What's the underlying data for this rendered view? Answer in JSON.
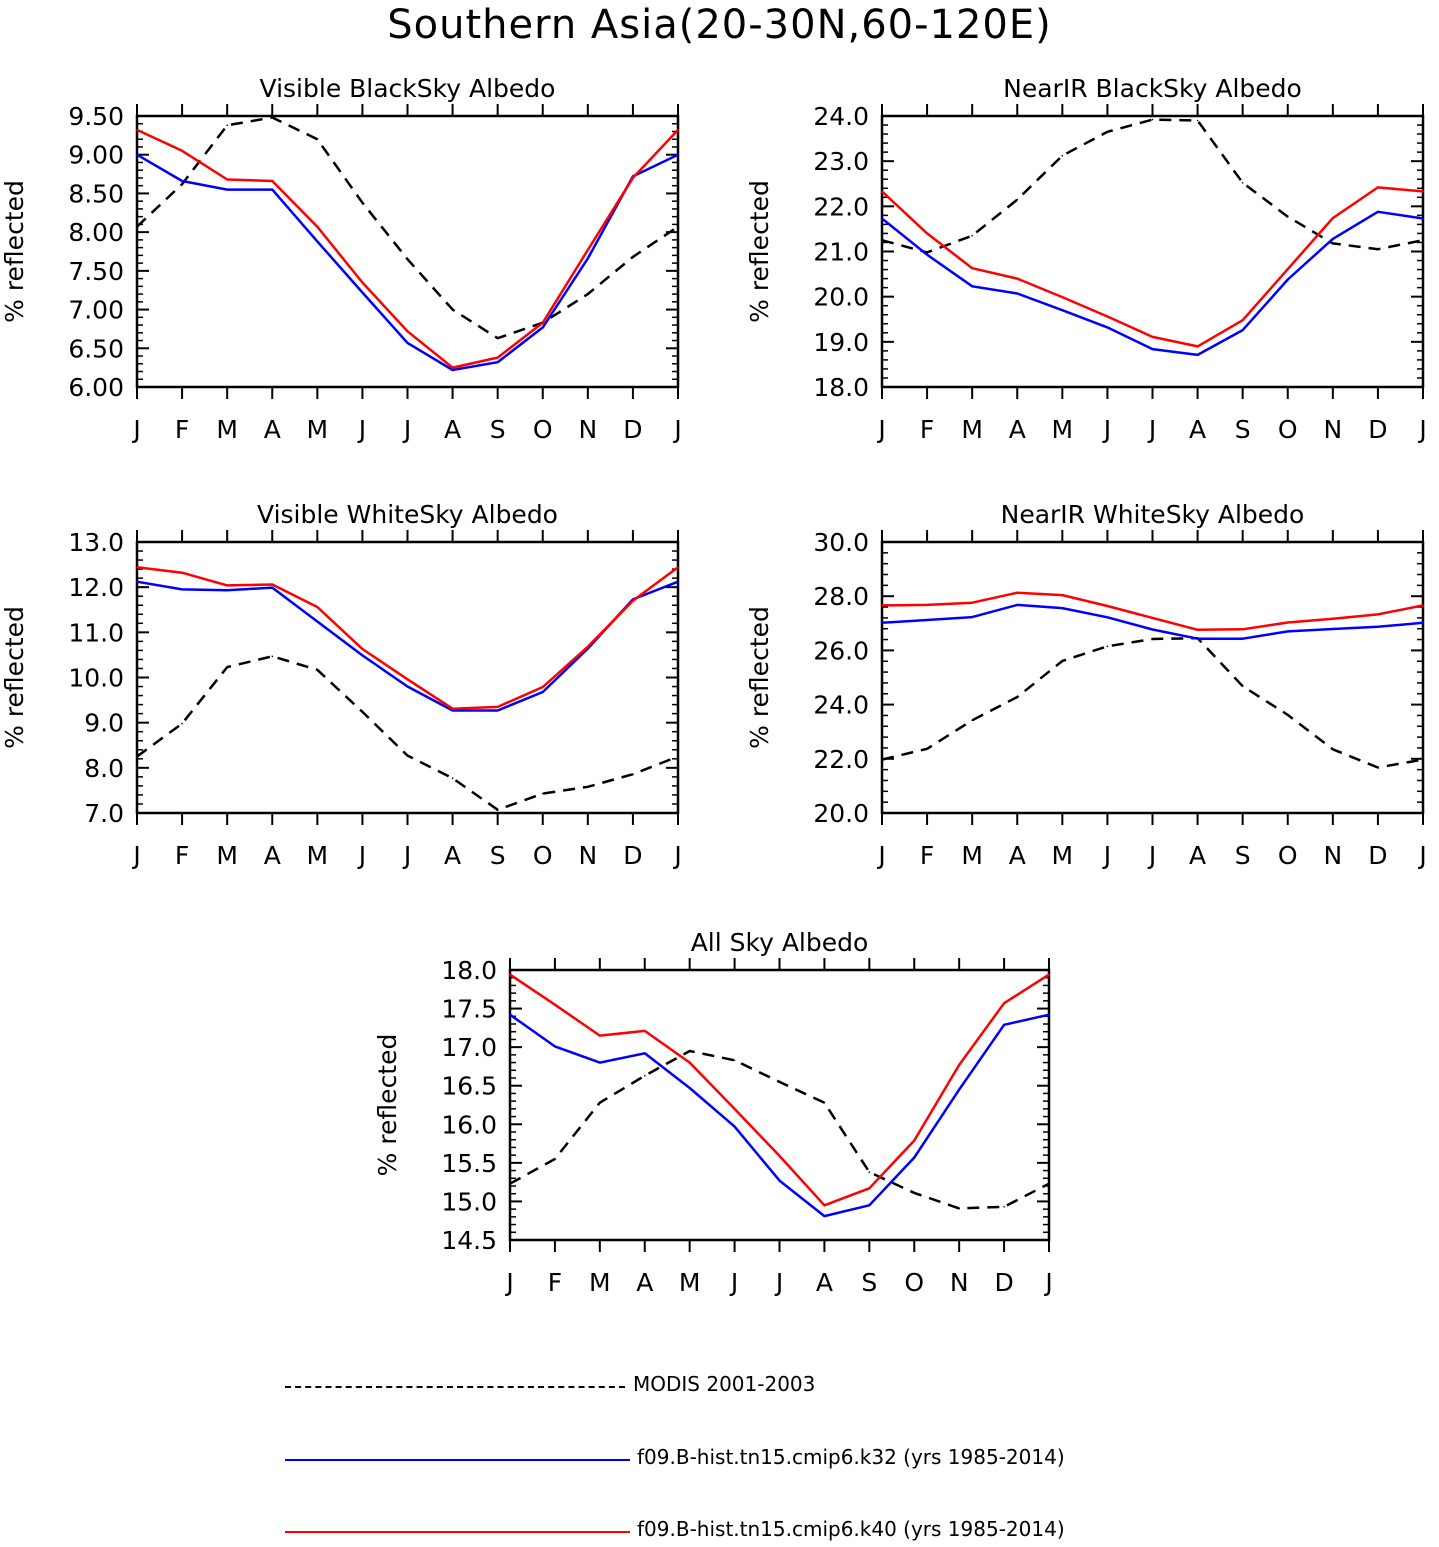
{
  "figure_title": "Southern Asia(20-30N,60-120E)",
  "colors": {
    "modis": "#000000",
    "k32": "#0000ff",
    "k40": "#ff0000"
  },
  "legend": [
    {
      "key": "modis",
      "label": "MODIS 2001-2003",
      "style": "dashed"
    },
    {
      "key": "k32",
      "label": "f09.B-hist.tn15.cmip6.k32 (yrs 1985-2014)",
      "style": "solid"
    },
    {
      "key": "k40",
      "label": "f09.B-hist.tn15.cmip6.k40 (yrs 1985-2014)",
      "style": "solid"
    }
  ],
  "chart_data": [
    {
      "type": "line",
      "title": "Visible BlackSky Albedo",
      "ylabel": "% reflected",
      "xlabel": "",
      "categories": [
        "J",
        "F",
        "M",
        "A",
        "M",
        "J",
        "J",
        "A",
        "S",
        "O",
        "N",
        "D",
        "J"
      ],
      "ylim": [
        6.0,
        9.5
      ],
      "yticks": [
        "6.00",
        "6.50",
        "7.00",
        "7.50",
        "8.00",
        "8.50",
        "9.00",
        "9.50"
      ],
      "series": [
        {
          "name": "MODIS 2001-2003",
          "key": "modis",
          "values": [
            8.07,
            8.62,
            9.38,
            9.48,
            9.2,
            8.38,
            7.65,
            7.0,
            6.63,
            6.83,
            7.2,
            7.68,
            8.07
          ]
        },
        {
          "name": "f09.B-hist.tn15.cmip6.k32 (yrs 1985-2014)",
          "key": "k32",
          "values": [
            9.0,
            8.66,
            8.55,
            8.55,
            7.88,
            7.22,
            6.57,
            6.22,
            6.32,
            6.77,
            7.66,
            8.72,
            9.0
          ]
        },
        {
          "name": "f09.B-hist.tn15.cmip6.k40 (yrs 1985-2014)",
          "key": "k40",
          "values": [
            9.32,
            9.05,
            8.68,
            8.66,
            8.07,
            7.35,
            6.72,
            6.25,
            6.38,
            6.83,
            7.77,
            8.7,
            9.32
          ]
        }
      ]
    },
    {
      "type": "line",
      "title": "NearIR BlackSky Albedo",
      "ylabel": "% reflected",
      "xlabel": "",
      "categories": [
        "J",
        "F",
        "M",
        "A",
        "M",
        "J",
        "J",
        "A",
        "S",
        "O",
        "N",
        "D",
        "J"
      ],
      "ylim": [
        18.0,
        24.0
      ],
      "yticks": [
        "18.0",
        "19.0",
        "20.0",
        "21.0",
        "22.0",
        "23.0",
        "24.0"
      ],
      "series": [
        {
          "name": "MODIS 2001-2003",
          "key": "modis",
          "values": [
            21.25,
            20.98,
            21.35,
            22.15,
            23.12,
            23.65,
            23.92,
            23.9,
            22.52,
            21.77,
            21.18,
            21.05,
            21.25
          ]
        },
        {
          "name": "f09.B-hist.tn15.cmip6.k32 (yrs 1985-2014)",
          "key": "k32",
          "values": [
            21.73,
            20.93,
            20.23,
            20.07,
            19.7,
            19.32,
            18.84,
            18.71,
            19.26,
            20.38,
            21.28,
            21.88,
            21.73
          ]
        },
        {
          "name": "f09.B-hist.tn15.cmip6.k40 (yrs 1985-2014)",
          "key": "k40",
          "values": [
            22.33,
            21.4,
            20.63,
            20.4,
            19.99,
            19.56,
            19.11,
            18.9,
            19.48,
            20.61,
            21.74,
            22.42,
            22.33
          ]
        }
      ]
    },
    {
      "type": "line",
      "title": "Visible WhiteSky Albedo",
      "ylabel": "% reflected",
      "xlabel": "",
      "categories": [
        "J",
        "F",
        "M",
        "A",
        "M",
        "J",
        "J",
        "A",
        "S",
        "O",
        "N",
        "D",
        "J"
      ],
      "ylim": [
        7.0,
        13.0
      ],
      "yticks": [
        "7.0",
        "8.0",
        "9.0",
        "10.0",
        "11.0",
        "12.0",
        "13.0"
      ],
      "series": [
        {
          "name": "MODIS 2001-2003",
          "key": "modis",
          "values": [
            8.25,
            8.98,
            10.23,
            10.47,
            10.17,
            9.24,
            8.27,
            7.77,
            7.07,
            7.43,
            7.58,
            7.86,
            8.25
          ]
        },
        {
          "name": "f09.B-hist.tn15.cmip6.k32 (yrs 1985-2014)",
          "key": "k32",
          "values": [
            12.12,
            11.95,
            11.93,
            11.99,
            11.24,
            10.49,
            9.8,
            9.27,
            9.27,
            9.68,
            10.64,
            11.73,
            12.12
          ]
        },
        {
          "name": "f09.B-hist.tn15.cmip6.k40 (yrs 1985-2014)",
          "key": "k40",
          "values": [
            12.44,
            12.32,
            12.04,
            12.06,
            11.56,
            10.63,
            9.96,
            9.31,
            9.35,
            9.79,
            10.68,
            11.7,
            12.44
          ]
        }
      ]
    },
    {
      "type": "line",
      "title": "NearIR WhiteSky Albedo",
      "ylabel": "% reflected",
      "xlabel": "",
      "categories": [
        "J",
        "F",
        "M",
        "A",
        "M",
        "J",
        "J",
        "A",
        "S",
        "O",
        "N",
        "D",
        "J"
      ],
      "ylim": [
        20.0,
        30.0
      ],
      "yticks": [
        "20.0",
        "22.0",
        "24.0",
        "26.0",
        "28.0",
        "30.0"
      ],
      "series": [
        {
          "name": "MODIS 2001-2003",
          "key": "modis",
          "values": [
            21.97,
            22.37,
            23.42,
            24.28,
            25.61,
            26.15,
            26.42,
            26.45,
            24.68,
            23.62,
            22.35,
            21.68,
            21.97
          ]
        },
        {
          "name": "f09.B-hist.tn15.cmip6.k32 (yrs 1985-2014)",
          "key": "k32",
          "values": [
            27.02,
            27.12,
            27.23,
            27.68,
            27.56,
            27.22,
            26.77,
            26.43,
            26.43,
            26.7,
            26.79,
            26.87,
            27.02
          ]
        },
        {
          "name": "f09.B-hist.tn15.cmip6.k40 (yrs 1985-2014)",
          "key": "k40",
          "values": [
            27.66,
            27.68,
            27.76,
            28.13,
            28.04,
            27.64,
            27.2,
            26.76,
            26.78,
            27.03,
            27.17,
            27.33,
            27.66
          ]
        }
      ]
    },
    {
      "type": "line",
      "title": "All Sky Albedo",
      "ylabel": "% reflected",
      "xlabel": "",
      "categories": [
        "J",
        "F",
        "M",
        "A",
        "M",
        "J",
        "J",
        "A",
        "S",
        "O",
        "N",
        "D",
        "J"
      ],
      "ylim": [
        14.5,
        18.0
      ],
      "yticks": [
        "14.5",
        "15.0",
        "15.5",
        "16.0",
        "16.5",
        "17.0",
        "17.5",
        "18.0"
      ],
      "series": [
        {
          "name": "MODIS 2001-2003",
          "key": "modis",
          "values": [
            15.23,
            15.55,
            16.28,
            16.63,
            16.95,
            16.83,
            16.55,
            16.28,
            15.38,
            15.11,
            14.91,
            14.93,
            15.23
          ]
        },
        {
          "name": "f09.B-hist.tn15.cmip6.k32 (yrs 1985-2014)",
          "key": "k32",
          "values": [
            17.42,
            17.01,
            16.8,
            16.92,
            16.47,
            15.97,
            15.27,
            14.81,
            14.95,
            15.57,
            16.45,
            17.29,
            17.42
          ]
        },
        {
          "name": "f09.B-hist.tn15.cmip6.k40 (yrs 1985-2014)",
          "key": "k40",
          "values": [
            17.94,
            17.55,
            17.15,
            17.21,
            16.8,
            16.2,
            15.59,
            14.95,
            15.17,
            15.79,
            16.77,
            17.57,
            17.94
          ]
        }
      ]
    }
  ]
}
